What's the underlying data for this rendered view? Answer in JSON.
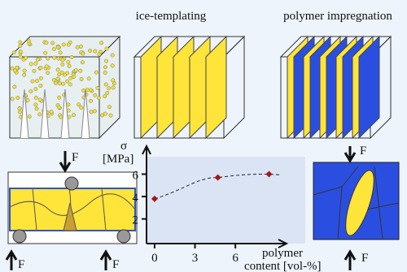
{
  "panels": {
    "ice_templating": "ice-templating",
    "polymer_impregnation": "polymer impregnation"
  },
  "forces": [
    "F",
    "F",
    "F",
    "F",
    "F"
  ],
  "chart_data": {
    "type": "scatter",
    "y_label_symbol": "σ",
    "y_label_unit": "[MPa]",
    "x_label_lines": [
      "polymer",
      "content [vol-%]"
    ],
    "x": [
      0,
      4.7,
      8.5
    ],
    "values": [
      3.8,
      5.7,
      6.0
    ],
    "color": "#a01818",
    "xlim": [
      -0.6,
      9.8
    ],
    "ylim": [
      -0.2,
      8.5
    ],
    "xticks": [
      0,
      3,
      6
    ],
    "yticks": [
      2,
      4,
      6
    ]
  }
}
